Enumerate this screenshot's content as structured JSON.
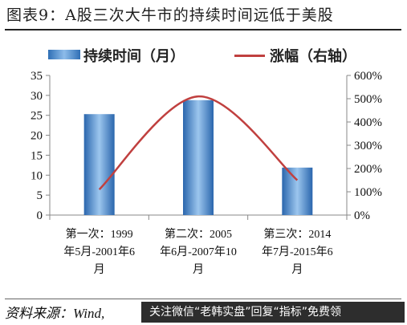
{
  "title": "图表9：A股三次大牛市的持续时间远低于美股",
  "legend": {
    "bar_label": "持续时间（月）",
    "line_label": "涨幅（右轴）"
  },
  "source": "资料来源：Wind,",
  "watermark": "关注微信“老韩实盘”回复“指标”免费领",
  "colors": {
    "bar": "#3f7fc4",
    "line": "#c0403f"
  },
  "chart_data": {
    "type": "bar",
    "categories": [
      [
        "第一次：1999",
        "年5月-2001年6",
        "月"
      ],
      [
        "第二次：2005",
        "年6月-2007年10",
        "月"
      ],
      [
        "第三次：2014",
        "年7月-2015年6",
        "月"
      ]
    ],
    "series": [
      {
        "name": "持续时间（月）",
        "type": "bar",
        "axis": "left",
        "values": [
          25.3,
          28.8,
          11.9
        ]
      },
      {
        "name": "涨幅（右轴）",
        "type": "line",
        "axis": "right",
        "values": [
          1.1,
          5.1,
          1.5
        ]
      }
    ],
    "ylim": [
      0,
      35
    ],
    "yticks": [
      0,
      5,
      10,
      15,
      20,
      25,
      30,
      35
    ],
    "y2lim": [
      0,
      6
    ],
    "y2ticks": [
      "0%",
      "100%",
      "200%",
      "300%",
      "400%",
      "500%",
      "600%"
    ],
    "grid": false,
    "legend_position": "top"
  }
}
